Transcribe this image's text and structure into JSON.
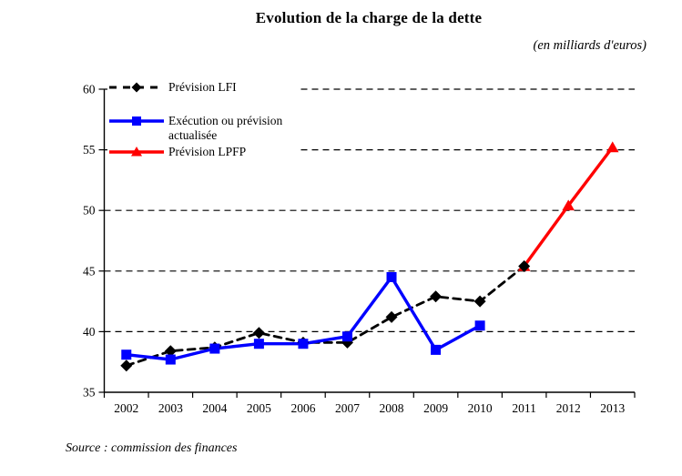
{
  "chart_data": {
    "type": "line",
    "title": "Evolution de la charge de la dette",
    "subtitle": "(en milliards d'euros)",
    "source": "Source : commission des finances",
    "categories": [
      "2002",
      "2003",
      "2004",
      "2005",
      "2006",
      "2007",
      "2008",
      "2009",
      "2010",
      "2011",
      "2012",
      "2013"
    ],
    "ylim": [
      35,
      60
    ],
    "yticks": [
      35,
      40,
      45,
      50,
      55,
      60
    ],
    "grid": "horizontal-dashed",
    "legend_position": "top-left-inside",
    "axis_color": "#000000",
    "background_color": "#ffffff",
    "series": [
      {
        "name": "Prévision LFI",
        "color": "#000000",
        "line_style": "dashed",
        "marker": "diamond",
        "values": [
          37.2,
          38.4,
          38.7,
          39.9,
          39.1,
          39.1,
          41.2,
          42.9,
          42.5,
          45.4,
          null,
          null
        ]
      },
      {
        "name": "Exécution ou prévision actualisée",
        "color": "#0000ff",
        "line_style": "solid",
        "marker": "square",
        "values": [
          38.1,
          37.7,
          38.6,
          39.0,
          39.0,
          39.6,
          44.5,
          38.5,
          40.5,
          null,
          null,
          null
        ]
      },
      {
        "name": "Prévision LPFP",
        "color": "#ff0000",
        "line_style": "solid",
        "marker": "triangle",
        "values": [
          null,
          null,
          null,
          null,
          null,
          null,
          null,
          null,
          null,
          45.4,
          50.4,
          55.2
        ]
      }
    ]
  }
}
